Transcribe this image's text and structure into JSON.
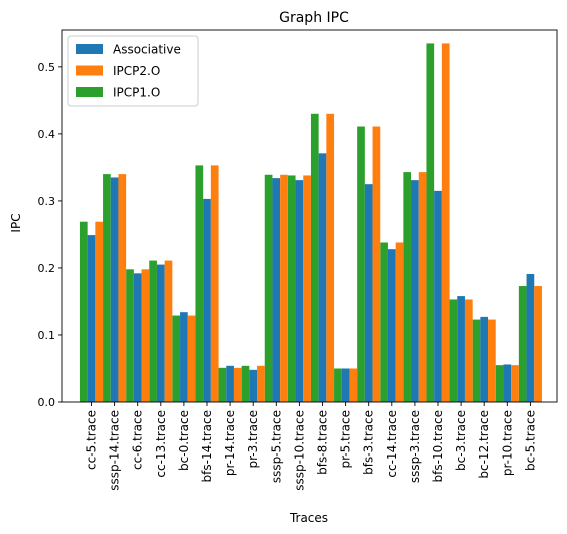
{
  "chart_data": {
    "type": "bar",
    "title": "Graph IPC",
    "xlabel": "Traces",
    "ylabel": "IPC",
    "ylim": [
      0,
      0.555
    ],
    "yticks": [
      0.0,
      0.1,
      0.2,
      0.3,
      0.4,
      0.5
    ],
    "ytick_labels": [
      "0.0",
      "0.1",
      "0.2",
      "0.3",
      "0.4",
      "0.5"
    ],
    "legend_position": "top-left",
    "categories": [
      "cc-5.trace",
      "sssp-14.trace",
      "cc-6.trace",
      "cc-13.trace",
      "bc-0.trace",
      "bfs-14.trace",
      "pr-14.trace",
      "pr-3.trace",
      "sssp-5.trace",
      "sssp-10.trace",
      "bfs-8.trace",
      "pr-5.trace",
      "bfs-3.trace",
      "cc-14.trace",
      "sssp-3.trace",
      "bfs-10.trace",
      "bc-3.trace",
      "bc-12.trace",
      "pr-10.trace",
      "bc-5.trace"
    ],
    "series": [
      {
        "name": "IPCP1.O",
        "color": "#2ca02c",
        "values": [
          0.269,
          0.34,
          0.198,
          0.211,
          0.129,
          0.353,
          0.051,
          0.054,
          0.339,
          0.338,
          0.43,
          0.05,
          0.411,
          0.238,
          0.343,
          0.535,
          0.153,
          0.123,
          0.055,
          0.173
        ]
      },
      {
        "name": "Associative",
        "color": "#1f77b4",
        "values": [
          0.249,
          0.335,
          0.192,
          0.205,
          0.134,
          0.303,
          0.054,
          0.048,
          0.334,
          0.331,
          0.371,
          0.05,
          0.325,
          0.228,
          0.331,
          0.315,
          0.158,
          0.127,
          0.056,
          0.191
        ]
      },
      {
        "name": "IPCP2.O",
        "color": "#ff7f0e",
        "values": [
          0.269,
          0.34,
          0.198,
          0.211,
          0.129,
          0.353,
          0.051,
          0.054,
          0.339,
          0.338,
          0.43,
          0.05,
          0.411,
          0.238,
          0.343,
          0.535,
          0.153,
          0.123,
          0.055,
          0.173
        ]
      }
    ],
    "legend_order": [
      "Associative",
      "IPCP2.O",
      "IPCP1.O"
    ]
  }
}
